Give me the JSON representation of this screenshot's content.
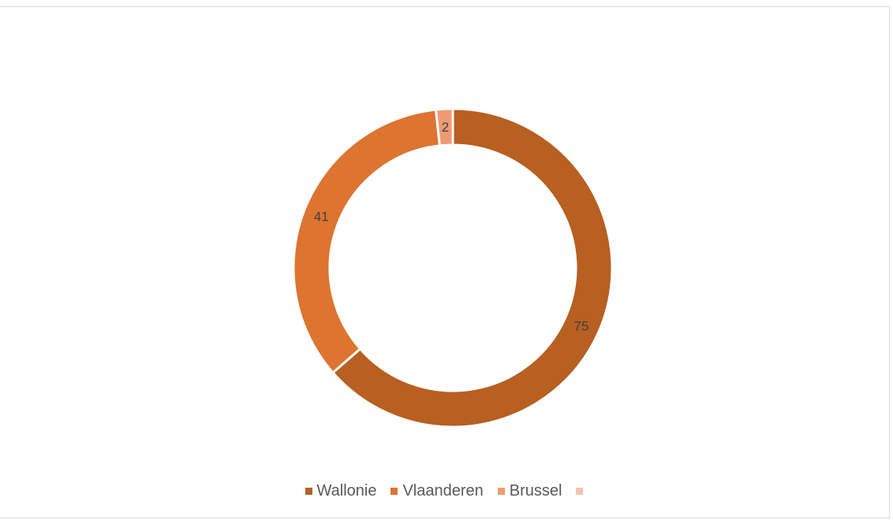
{
  "chart_data": {
    "type": "pie",
    "variant": "doughnut",
    "title": "",
    "categories": [
      "Wallonie",
      "Vlaanderen",
      "Brussel",
      ""
    ],
    "values": [
      75,
      41,
      2,
      0
    ],
    "data_labels": [
      "75",
      "41",
      "2",
      ""
    ],
    "colors": [
      "#b85f22",
      "#dd7430",
      "#ef9a72",
      "#f5c4ad"
    ],
    "legend_position": "bottom"
  }
}
